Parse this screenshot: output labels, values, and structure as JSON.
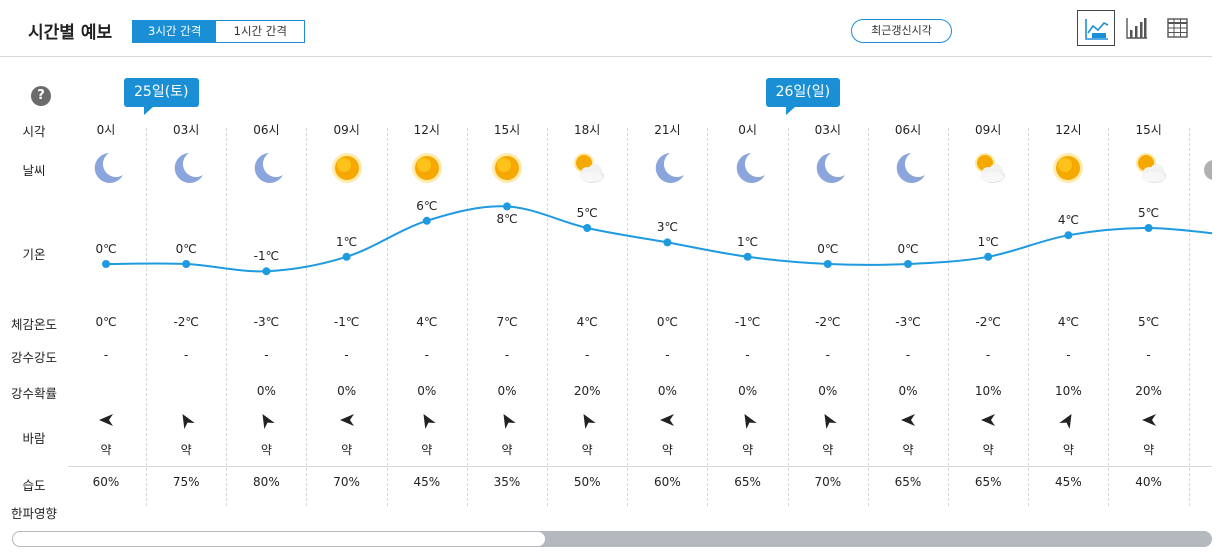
{
  "header": {
    "title": "시간별 예보",
    "toggle_3h": "3시간 간격",
    "toggle_1h": "1시간 간격",
    "refresh_label": "최근갱신시각"
  },
  "labels": {
    "help": "?",
    "time": "시각",
    "weather": "날씨",
    "temp": "기온",
    "feels": "체감온도",
    "precip_amount": "강수강도",
    "precip_prob": "강수확률",
    "wind": "바람",
    "humidity": "습도",
    "cold_wave": "한파영향"
  },
  "dates": [
    {
      "label": "25일(토)",
      "col": 0
    },
    {
      "label": "26일(일)",
      "col": 8
    }
  ],
  "columns": [
    {
      "time": "0시",
      "icon": "moon-icon",
      "temp": 0,
      "temp_label": "0℃",
      "feels": "0℃",
      "amount": "-",
      "prob": "",
      "wind_dir": 180,
      "wind": "약",
      "humidity": "60%"
    },
    {
      "time": "03시",
      "icon": "moon-icon",
      "temp": 0,
      "temp_label": "0℃",
      "feels": "-2℃",
      "amount": "-",
      "prob": "",
      "wind_dir": 240,
      "wind": "약",
      "humidity": "75%"
    },
    {
      "time": "06시",
      "icon": "moon-icon",
      "temp": -1,
      "temp_label": "-1℃",
      "feels": "-3℃",
      "amount": "-",
      "prob": "0%",
      "wind_dir": 240,
      "wind": "약",
      "humidity": "80%"
    },
    {
      "time": "09시",
      "icon": "sun-icon",
      "temp": 1,
      "temp_label": "1℃",
      "feels": "-1℃",
      "amount": "-",
      "prob": "0%",
      "wind_dir": 180,
      "wind": "약",
      "humidity": "70%"
    },
    {
      "time": "12시",
      "icon": "sun-icon",
      "temp": 6,
      "temp_label": "6℃",
      "feels": "4℃",
      "amount": "-",
      "prob": "0%",
      "wind_dir": 240,
      "wind": "약",
      "humidity": "45%"
    },
    {
      "time": "15시",
      "icon": "sun-icon",
      "temp": 8,
      "temp_label": "8℃",
      "feels": "7℃",
      "amount": "-",
      "prob": "0%",
      "wind_dir": 240,
      "wind": "약",
      "humidity": "35%"
    },
    {
      "time": "18시",
      "icon": "sun-cloud-icon",
      "temp": 5,
      "temp_label": "5℃",
      "feels": "4℃",
      "amount": "-",
      "prob": "20%",
      "wind_dir": 240,
      "wind": "약",
      "humidity": "50%"
    },
    {
      "time": "21시",
      "icon": "moon-icon",
      "temp": 3,
      "temp_label": "3℃",
      "feels": "0℃",
      "amount": "-",
      "prob": "0%",
      "wind_dir": 180,
      "wind": "약",
      "humidity": "60%"
    },
    {
      "time": "0시",
      "icon": "moon-icon",
      "temp": 1,
      "temp_label": "1℃",
      "feels": "-1℃",
      "amount": "-",
      "prob": "0%",
      "wind_dir": 240,
      "wind": "약",
      "humidity": "65%"
    },
    {
      "time": "03시",
      "icon": "moon-icon",
      "temp": 0,
      "temp_label": "0℃",
      "feels": "-2℃",
      "amount": "-",
      "prob": "0%",
      "wind_dir": 240,
      "wind": "약",
      "humidity": "70%"
    },
    {
      "time": "06시",
      "icon": "moon-icon",
      "temp": 0,
      "temp_label": "0℃",
      "feels": "-3℃",
      "amount": "-",
      "prob": "0%",
      "wind_dir": 180,
      "wind": "약",
      "humidity": "65%"
    },
    {
      "time": "09시",
      "icon": "sun-cloud-icon",
      "temp": 1,
      "temp_label": "1℃",
      "feels": "-2℃",
      "amount": "-",
      "prob": "10%",
      "wind_dir": 180,
      "wind": "약",
      "humidity": "65%"
    },
    {
      "time": "12시",
      "icon": "sun-icon",
      "temp": 4,
      "temp_label": "4℃",
      "feels": "4℃",
      "amount": "-",
      "prob": "10%",
      "wind_dir": 300,
      "wind": "약",
      "humidity": "45%"
    },
    {
      "time": "15시",
      "icon": "sun-cloud-icon",
      "temp": 5,
      "temp_label": "5℃",
      "feels": "5℃",
      "amount": "-",
      "prob": "20%",
      "wind_dir": 180,
      "wind": "약",
      "humidity": "40%"
    }
  ],
  "colors": {
    "accent": "#1b8fd6",
    "line": "#1e9ae0",
    "moon": "#8aa4dc",
    "sun": "#f5a800",
    "sun_ring": "#ffd24a",
    "cloud": "#f2f2f2"
  },
  "view_icons": [
    "graph-view-icon",
    "bar-chart-icon",
    "table-view-icon"
  ]
}
